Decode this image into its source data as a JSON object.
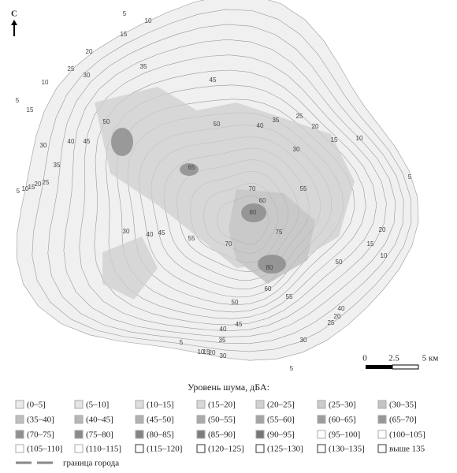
{
  "north_label": "С",
  "contour_labels": [
    "5",
    "10",
    "15",
    "20",
    "25",
    "30",
    "35",
    "10",
    "15",
    "5",
    "30",
    "40",
    "45",
    "35",
    "25",
    "20",
    "15",
    "10",
    "5",
    "50",
    "10",
    "15",
    "20",
    "25",
    "30",
    "35",
    "40",
    "45",
    "55",
    "50",
    "55",
    "60",
    "80",
    "75",
    "70",
    "65",
    "50",
    "30",
    "40",
    "45",
    "55",
    "50",
    "45",
    "40",
    "35",
    "30",
    "5",
    "10",
    "15",
    "20",
    "30",
    "25",
    "20",
    "40",
    "20",
    "15",
    "10",
    "5",
    "5",
    "80",
    "70",
    "60"
  ],
  "scale": {
    "zero": "0",
    "mid": "2.5",
    "end": "5 км"
  },
  "legend": {
    "title": "Уровень шума, дБА:",
    "items": [
      "(0–5]",
      "(5–10]",
      "(10–15]",
      "(15–20]",
      "(20–25]",
      "(25–30]",
      "(30–35]",
      "(35–40]",
      "(40–45]",
      "(45–50]",
      "(50–55]",
      "(55–60]",
      "(60–65]",
      "(65–70]",
      "(70–75]",
      "(75–80]",
      "(80–85]",
      "(85–90]",
      "(90–95]",
      "(95–100]",
      "(100–105]",
      "(105–110]",
      "(110–115]",
      "(115–120]",
      "(120–125]",
      "(125–130]",
      "(130–135]",
      "выше 135"
    ],
    "boundary": "граница города"
  }
}
